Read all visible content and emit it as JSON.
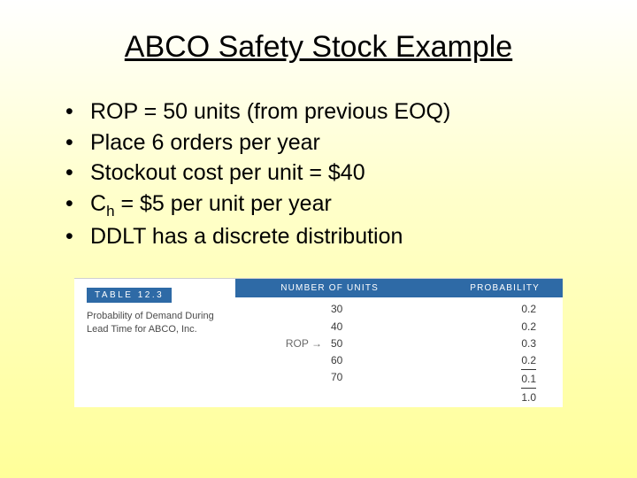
{
  "title": "ABCO Safety Stock Example",
  "bullets": {
    "b1": "ROP = 50 units (from previous EOQ)",
    "b2": "Place 6 orders per year",
    "b3": "Stockout cost per unit = $40",
    "b4_prefix": "C",
    "b4_sub": "h",
    "b4_rest": " = $5 per unit per year",
    "b5": "DDLT has a discrete distribution"
  },
  "table": {
    "tag": "TABLE 12.3",
    "caption": "Probability of Demand During Lead Time for ABCO, Inc.",
    "head_units": "NUMBER OF UNITS",
    "head_prob": "PROBABILITY",
    "rows": [
      {
        "label": "",
        "units": "30",
        "prob": "0.2"
      },
      {
        "label": "",
        "units": "40",
        "prob": "0.2"
      },
      {
        "label": "ROP →",
        "units": "50",
        "prob": "0.3"
      },
      {
        "label": "",
        "units": "60",
        "prob": "0.2"
      },
      {
        "label": "",
        "units": "70",
        "prob": "0.1"
      }
    ],
    "sum": "1.0"
  },
  "colors": {
    "header_bg": "#2e6aa6",
    "header_text": "#ffffff",
    "body_text": "#000000",
    "table_text": "#3a3a3a"
  }
}
